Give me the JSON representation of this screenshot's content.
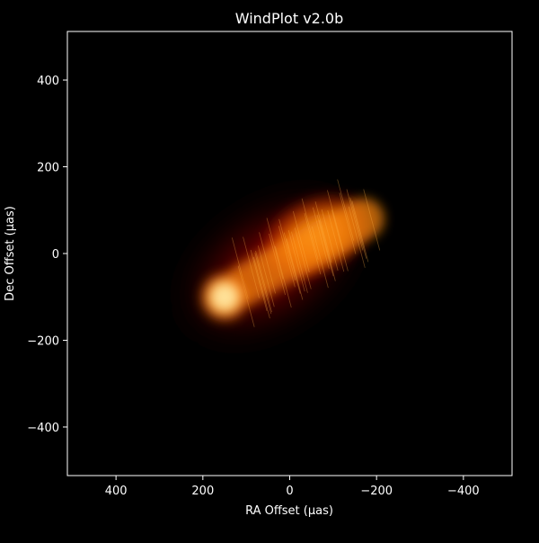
{
  "window": {
    "title": "WindPlot v2.0b"
  },
  "chart_data": {
    "type": "heatmap",
    "title": "WindPlot v2.0b",
    "xlabel": "RA Offset (μas)",
    "ylabel": "Dec Offset (μas)",
    "xlim": [
      512,
      -512
    ],
    "ylim": [
      -512,
      512
    ],
    "x_ticks": [
      400,
      200,
      0,
      -200,
      -400
    ],
    "y_ticks": [
      400,
      200,
      0,
      -200,
      -400
    ],
    "x_tick_labels": [
      "400",
      "200",
      "0",
      "−200",
      "−400"
    ],
    "y_tick_labels": [
      "400",
      "200",
      "0",
      "−200",
      "−400"
    ],
    "colormap": "hot",
    "grid": false,
    "features": [
      {
        "name": "core",
        "ra": 150,
        "dec": -100,
        "brightness": 1.0
      },
      {
        "name": "jet",
        "ra_from": 100,
        "dec_from": -70,
        "ra_to": -170,
        "dec_to": 80,
        "brightness": 0.7
      },
      {
        "name": "lobe",
        "ra": -60,
        "dec": 40,
        "brightness": 0.75
      }
    ],
    "colors": {
      "background": "#000000",
      "axes": "#ffffff",
      "core": "#ffd27a",
      "jet": "#ff8a10",
      "halo": "#8a0000"
    }
  }
}
